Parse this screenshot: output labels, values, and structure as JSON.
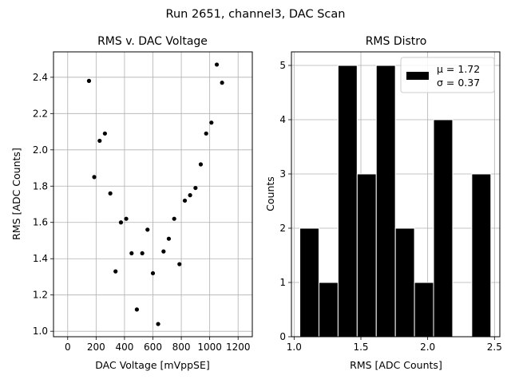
{
  "figure_title": "Run 2651, channel3, DAC Scan",
  "chart_data": [
    {
      "type": "scatter",
      "title": "RMS v. DAC Voltage",
      "xlabel": "DAC Voltage [mVppSE]",
      "ylabel": "RMS [ADC Counts]",
      "xlim": [
        -100,
        1300
      ],
      "ylim": [
        0.97,
        2.54
      ],
      "xticks": [
        0,
        200,
        400,
        600,
        800,
        1000,
        1200
      ],
      "yticks": [
        1.0,
        1.2,
        1.4,
        1.6,
        1.8,
        2.0,
        2.2,
        2.4
      ],
      "grid": true,
      "marker_color": "#000000",
      "points": [
        {
          "x": 150,
          "y": 2.38
        },
        {
          "x": 187,
          "y": 1.85
        },
        {
          "x": 225,
          "y": 2.05
        },
        {
          "x": 262,
          "y": 2.09
        },
        {
          "x": 300,
          "y": 1.76
        },
        {
          "x": 337,
          "y": 1.33
        },
        {
          "x": 375,
          "y": 1.6
        },
        {
          "x": 412,
          "y": 1.62
        },
        {
          "x": 450,
          "y": 1.43
        },
        {
          "x": 487,
          "y": 1.12
        },
        {
          "x": 525,
          "y": 1.43
        },
        {
          "x": 562,
          "y": 1.56
        },
        {
          "x": 600,
          "y": 1.32
        },
        {
          "x": 637,
          "y": 1.04
        },
        {
          "x": 675,
          "y": 1.44
        },
        {
          "x": 712,
          "y": 1.51
        },
        {
          "x": 750,
          "y": 1.62
        },
        {
          "x": 787,
          "y": 1.37
        },
        {
          "x": 825,
          "y": 1.72
        },
        {
          "x": 862,
          "y": 1.75
        },
        {
          "x": 900,
          "y": 1.79
        },
        {
          "x": 937,
          "y": 1.92
        },
        {
          "x": 975,
          "y": 2.09
        },
        {
          "x": 1012,
          "y": 2.15
        },
        {
          "x": 1050,
          "y": 2.47
        },
        {
          "x": 1087,
          "y": 2.37
        }
      ]
    },
    {
      "type": "bar",
      "subtype": "histogram",
      "title": "RMS Distro",
      "xlabel": "RMS [ADC Counts]",
      "ylabel": "Counts",
      "xlim": [
        0.98,
        2.54
      ],
      "ylim": [
        0,
        5.25
      ],
      "xticks": [
        "1.0",
        "1.5",
        "2.0",
        "2.5"
      ],
      "xtick_values": [
        1.0,
        1.5,
        2.0,
        2.5
      ],
      "yticks": [
        0,
        1,
        2,
        3,
        4,
        5
      ],
      "grid": true,
      "bar_color": "#000000",
      "edge_color": "#ffffff",
      "bins": [
        {
          "start": 1.043,
          "end": 1.186,
          "count": 2
        },
        {
          "start": 1.186,
          "end": 1.329,
          "count": 1
        },
        {
          "start": 1.329,
          "end": 1.472,
          "count": 5
        },
        {
          "start": 1.472,
          "end": 1.615,
          "count": 3
        },
        {
          "start": 1.615,
          "end": 1.758,
          "count": 5
        },
        {
          "start": 1.758,
          "end": 1.901,
          "count": 2
        },
        {
          "start": 1.901,
          "end": 2.044,
          "count": 1
        },
        {
          "start": 2.044,
          "end": 2.187,
          "count": 4
        },
        {
          "start": 2.187,
          "end": 2.33,
          "count": 0
        },
        {
          "start": 2.33,
          "end": 2.473,
          "count": 3
        }
      ],
      "legend": {
        "placement": "top-right",
        "mu_label": "μ = 1.72",
        "sigma_label": "σ = 0.37"
      }
    }
  ]
}
